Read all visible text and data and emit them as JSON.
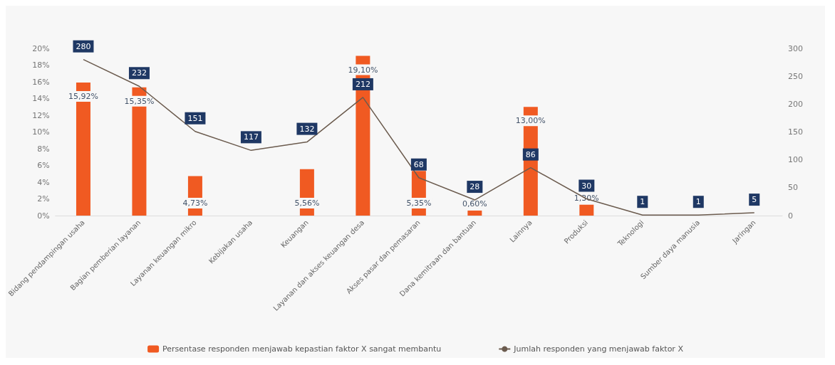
{
  "chart_data": {
    "type": "bar",
    "categories": [
      "Bidang pendampingan usaha",
      "Bagian pemberian layanan",
      "Layanan keuangan mikro",
      "Kebijakan usaha",
      "Keuangan",
      "Layanan dan akses keuangan desa",
      "Akses pasar dan pemasaran",
      "Dana kemitraan dan bantuan",
      "Lainnya",
      "Produksi",
      "Teknologi",
      "Sumber daya manusia",
      "Jaringan"
    ],
    "series": [
      {
        "name": "Persentase responden menjawab kepastian faktor X sangat membantu",
        "color": "#f05a22",
        "values": [
          15.92,
          15.35,
          4.73,
          null,
          5.56,
          19.1,
          5.35,
          0.6,
          13.0,
          1.3,
          null,
          null,
          null
        ],
        "value_labels": [
          "15,92%",
          "15,35%",
          "4,73%",
          null,
          "5,56%",
          "19,10%",
          "5,35%",
          "0,60%",
          "13,00%",
          "1,30%",
          null,
          null,
          null
        ]
      },
      {
        "name": "Jumlah responden yang menjawab faktor X",
        "type": "line",
        "axis": "y2",
        "color": "#6b5b4e",
        "values": [
          280,
          232,
          151,
          117,
          132,
          212,
          68,
          28,
          86,
          30,
          1,
          1,
          5
        ],
        "value_labels": [
          "280",
          "232",
          "151",
          "117",
          "132",
          "212",
          "68",
          "28",
          "86",
          "30",
          "1",
          "1",
          "5"
        ]
      }
    ],
    "ylim": [
      0,
      20
    ],
    "yticks": [
      {
        "value": 0,
        "label": "0%"
      },
      {
        "value": 2,
        "label": "2%"
      },
      {
        "value": 4,
        "label": "4%"
      },
      {
        "value": 6,
        "label": "6%"
      },
      {
        "value": 8,
        "label": "8%"
      },
      {
        "value": 10,
        "label": "10%"
      },
      {
        "value": 12,
        "label": "12%"
      },
      {
        "value": 14,
        "label": "14%"
      },
      {
        "value": 16,
        "label": "16%"
      },
      {
        "value": 18,
        "label": "18%"
      },
      {
        "value": 20,
        "label": "20%"
      }
    ],
    "y2lim": [
      0,
      300
    ],
    "y2ticks": [
      0,
      50,
      100,
      150,
      200,
      250,
      300
    ],
    "grid": false,
    "legend": "bottom",
    "marker": "none",
    "line_style": "solid"
  }
}
